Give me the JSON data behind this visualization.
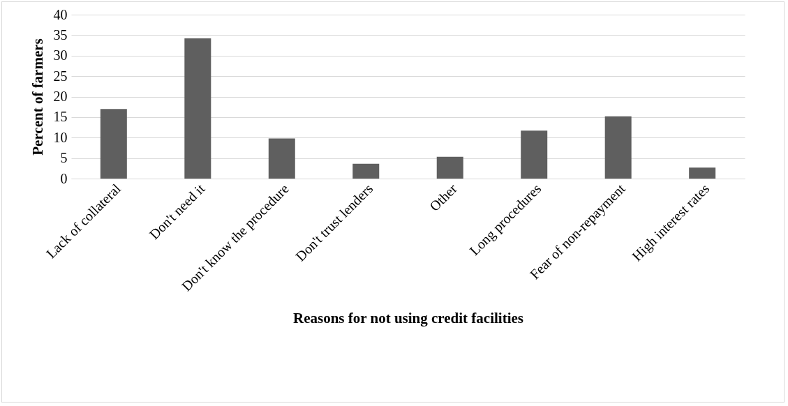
{
  "chart_data": {
    "type": "bar",
    "xlabel": "Reasons for  not using credit facilities",
    "ylabel": "Percent of farmers",
    "categories": [
      "Lack of collateral",
      "Don't need it",
      "Don't know the procedure",
      "Don't trust lenders",
      "Other",
      "Long procedures",
      "Fear of non-repayment",
      "High interest rates"
    ],
    "values": [
      17.0,
      34.2,
      9.8,
      3.6,
      5.3,
      11.7,
      15.2,
      2.7
    ],
    "color": "#5f5f5f",
    "ylim": [
      0,
      40
    ],
    "yticks": [
      0,
      5,
      10,
      15,
      20,
      25,
      30,
      35,
      40
    ],
    "grid": "y",
    "legend": false
  }
}
